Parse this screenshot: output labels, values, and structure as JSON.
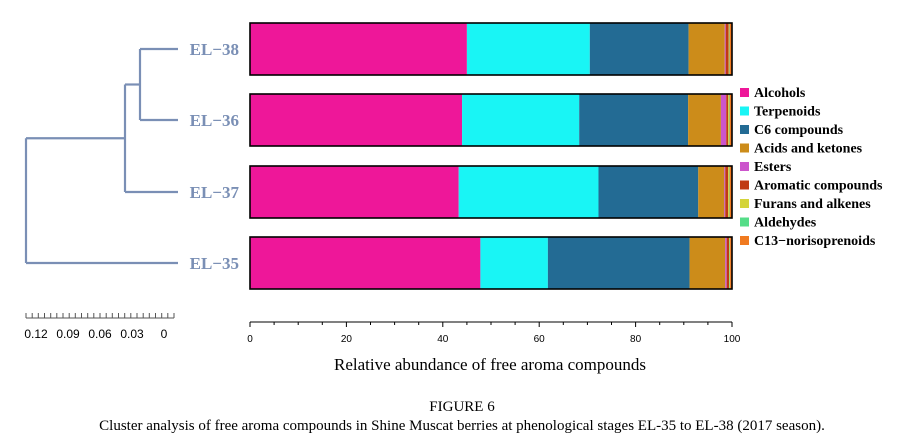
{
  "chart_data": {
    "type": "bar",
    "orientation": "horizontal",
    "stacked": true,
    "xlabel": "Relative abundance of free aroma compounds",
    "xlim": [
      0,
      100
    ],
    "x_ticks": [
      "0",
      "20",
      "40",
      "60",
      "80",
      "100"
    ],
    "categories": [
      "EL−38",
      "EL−36",
      "EL−37",
      "EL−35"
    ],
    "series": [
      {
        "name": "Alcohols",
        "color": "#ee1799",
        "values": [
          45.0,
          44.0,
          43.3,
          47.8
        ]
      },
      {
        "name": "Terpenoids",
        "color": "#19f5f5",
        "values": [
          25.5,
          24.3,
          29.0,
          14.0
        ]
      },
      {
        "name": "C6 compounds",
        "color": "#236b94",
        "values": [
          20.5,
          22.6,
          20.7,
          29.4
        ]
      },
      {
        "name": "Acids and ketones",
        "color": "#cc8c1a",
        "values": [
          7.5,
          6.8,
          5.4,
          7.4
        ]
      },
      {
        "name": "Esters",
        "color": "#cc55cc",
        "values": [
          0.2,
          1.1,
          0.2,
          0.3
        ]
      },
      {
        "name": "Aromatic compounds",
        "color": "#c03a14",
        "values": [
          0.6,
          0.4,
          0.6,
          0.5
        ]
      },
      {
        "name": "Furans and alkenes",
        "color": "#d4d43a",
        "values": [
          0.1,
          0.2,
          0.2,
          0.1
        ]
      },
      {
        "name": "Aldehydes",
        "color": "#55dd88",
        "values": [
          0.1,
          0.1,
          0.1,
          0.1
        ]
      },
      {
        "name": "C13−norisoprenoids",
        "color": "#f07a20",
        "values": [
          0.5,
          0.5,
          0.5,
          0.4
        ]
      }
    ],
    "dendrogram": {
      "scale_ticks": [
        "0.12",
        "0.09",
        "0.06",
        "0.03",
        "0"
      ],
      "branch_color": "#7a8fb5"
    },
    "legend_position": "right"
  },
  "figure": {
    "label": "FIGURE 6",
    "caption": "Cluster analysis of free aroma compounds in Shine Muscat berries at phenological stages EL-35 to EL-38 (2017 season)."
  }
}
